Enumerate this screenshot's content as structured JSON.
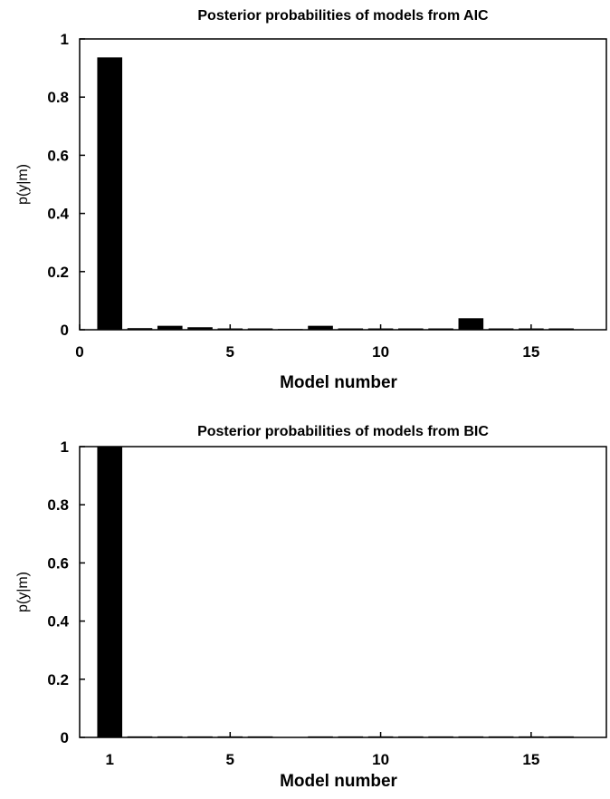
{
  "chart_data": [
    {
      "type": "bar",
      "title": "Posterior probabilities of models from AIC",
      "xlabel": "Model number",
      "ylabel": "p(y|m)",
      "x": [
        1,
        2,
        3,
        4,
        5,
        6,
        7,
        8,
        9,
        10,
        11,
        12,
        13,
        14,
        15,
        16
      ],
      "values": [
        0.935,
        0.004,
        0.012,
        0.007,
        0.003,
        0.003,
        0.001,
        0.012,
        0.003,
        0.003,
        0.003,
        0.003,
        0.038,
        0.003,
        0.003,
        0.003
      ],
      "xlim": [
        0,
        17.5
      ],
      "ylim": [
        0,
        1
      ],
      "xticks": [
        "0",
        "5",
        "10",
        "15"
      ],
      "xtick_values": [
        0,
        5,
        10,
        15
      ],
      "yticks": [
        "0",
        "0.2",
        "0.4",
        "0.6",
        "0.8",
        "1"
      ],
      "ytick_values": [
        0,
        0.2,
        0.4,
        0.6,
        0.8,
        1
      ],
      "bar_color": "#000000",
      "grid": false
    },
    {
      "type": "bar",
      "title": "Posterior probabilities of models from BIC",
      "xlabel": "Model number",
      "ylabel": "p(y|m)",
      "x": [
        1,
        2,
        3,
        4,
        5,
        6,
        7,
        8,
        9,
        10,
        11,
        12,
        13,
        14,
        15,
        16
      ],
      "values": [
        1.0,
        0.002,
        0.002,
        0.002,
        0.002,
        0.002,
        0.0,
        0.002,
        0.002,
        0.002,
        0.002,
        0.002,
        0.002,
        0.002,
        0.002,
        0.002
      ],
      "xlim": [
        0,
        17.5
      ],
      "ylim": [
        0,
        1
      ],
      "xticks": [
        "1",
        "5",
        "10",
        "15"
      ],
      "xtick_values": [
        1,
        5,
        10,
        15
      ],
      "yticks": [
        "0",
        "0.2",
        "0.4",
        "0.6",
        "0.8",
        "1"
      ],
      "ytick_values": [
        0,
        0.2,
        0.4,
        0.6,
        0.8,
        1
      ],
      "bar_color": "#000000",
      "grid": false
    }
  ]
}
